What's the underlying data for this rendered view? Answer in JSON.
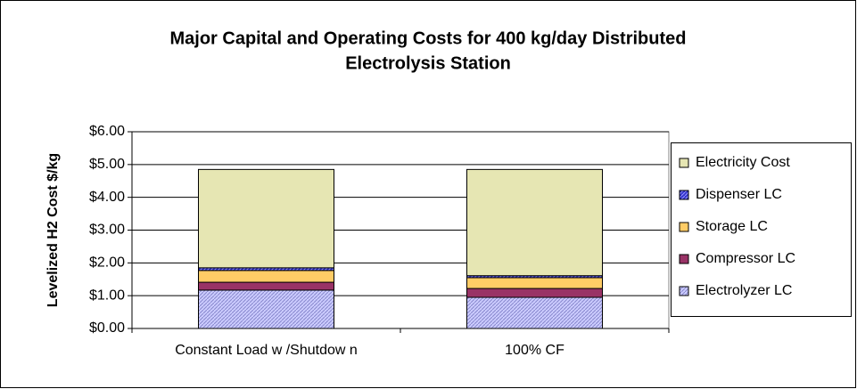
{
  "chart_data": {
    "type": "stacked_bar",
    "title": [
      "Major Capital and Operating Costs for 400 kg/day Distributed",
      "Electrolysis Station"
    ],
    "y_label": "Levelized H2 Cost $/kg",
    "categories": [
      "Constant Load w /Shutdow n",
      "100% CF"
    ],
    "series": [
      {
        "name": "Electrolyzer LC",
        "color": "#ccccff",
        "values": [
          1.17,
          0.95
        ]
      },
      {
        "name": "Compressor LC",
        "color": "#993366",
        "values": [
          0.24,
          0.27
        ]
      },
      {
        "name": "Storage LC",
        "color": "#ffcc66",
        "values": [
          0.36,
          0.33
        ]
      },
      {
        "name": "Dispenser LC",
        "color": "#3333cc",
        "values": [
          0.08,
          0.06
        ]
      },
      {
        "name": "Electricity Cost",
        "color": "#e6e6b3",
        "values": [
          3.0,
          3.24
        ]
      }
    ],
    "ylim": [
      0,
      6
    ],
    "yticks": [
      {
        "value": 0,
        "label": "$0.00"
      },
      {
        "value": 1,
        "label": "$1.00"
      },
      {
        "value": 2,
        "label": "$2.00"
      },
      {
        "value": 3,
        "label": "$3.00"
      },
      {
        "value": 4,
        "label": "$4.00"
      },
      {
        "value": 5,
        "label": "$5.00"
      },
      {
        "value": 6,
        "label": "$6.00"
      }
    ],
    "grid": true
  }
}
